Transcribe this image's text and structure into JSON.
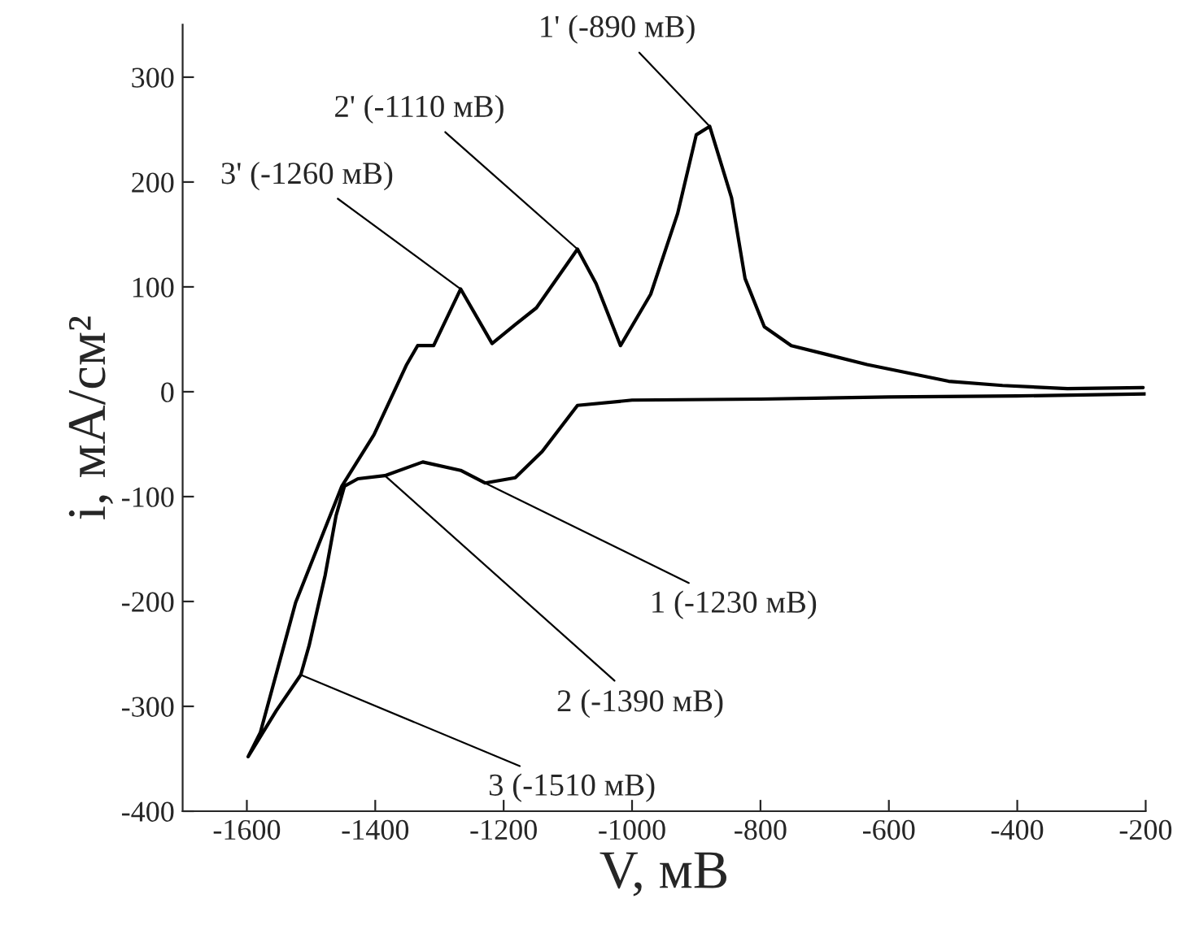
{
  "chart_data": {
    "type": "line",
    "xlabel": "V, мВ",
    "ylabel": "i, мА/см²",
    "xlim": [
      -1700,
      -200
    ],
    "xticks": [
      -1600,
      -1400,
      -1200,
      -1000,
      -800,
      -600,
      -400,
      -200
    ],
    "ylim": [
      -400,
      350
    ],
    "yticks": [
      -400,
      -300,
      -200,
      -100,
      0,
      100,
      200,
      300
    ],
    "grid": false,
    "legend": false,
    "marker": "none",
    "line_style": "solid",
    "series": [
      {
        "color": "#000000",
        "x": [
          -200,
          -400,
          -600,
          -800,
          -1000,
          -1085,
          -1140,
          -1182,
          -1229,
          -1267,
          -1326,
          -1385,
          -1427,
          -1448,
          -1461,
          -1478,
          -1503,
          -1516,
          -1554,
          -1598,
          -1579,
          -1524,
          -1452,
          -1402,
          -1351,
          -1334,
          -1309,
          -1267,
          -1218,
          -1182,
          -1149,
          -1085,
          -1056,
          -1018,
          -971,
          -929,
          -900,
          -879,
          -845,
          -824,
          -794,
          -752,
          -634,
          -507,
          -423,
          -322,
          -204
        ],
        "values": [
          -2,
          -4,
          -5,
          -7,
          -8,
          -13,
          -57,
          -82,
          -87,
          -75,
          -67,
          -80,
          -83,
          -90,
          -118,
          -175,
          -242,
          -270,
          -304,
          -348,
          -325,
          -201,
          -90,
          -41,
          26,
          44,
          44,
          98,
          46,
          64,
          80,
          136,
          103,
          44,
          93,
          170,
          245,
          253,
          185,
          108,
          62,
          44,
          26,
          10,
          6,
          3,
          4
        ]
      }
    ],
    "annotations": [
      {
        "text": "1' (-890 мВ)",
        "x": -879,
        "y": 253
      },
      {
        "text": "2' (-1110 мВ)",
        "x": -1085,
        "y": 136
      },
      {
        "text": "3' (-1260 мВ)",
        "x": -1267,
        "y": 98
      },
      {
        "text": "1 (-1230 мВ)",
        "x": -1229,
        "y": -87
      },
      {
        "text": "2 (-1390 мВ)",
        "x": -1385,
        "y": -80
      },
      {
        "text": "3 (-1510 мВ)",
        "x": -1516,
        "y": -270
      }
    ]
  }
}
